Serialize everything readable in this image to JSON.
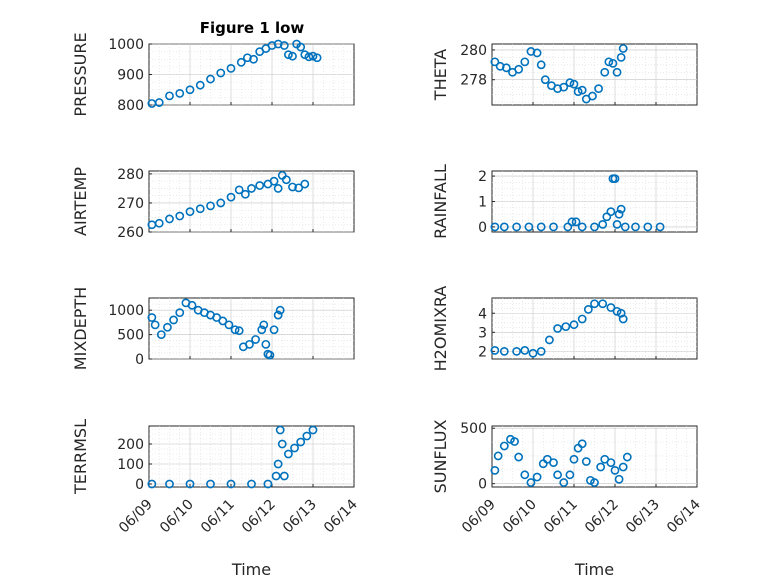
{
  "figure": {
    "title": "Figure 1 low",
    "marker_color": "#0072BD"
  },
  "x_ticks": [
    "06/09",
    "06/10",
    "06/11",
    "06/12",
    "06/13",
    "06/14"
  ],
  "chart_data": [
    {
      "type": "scatter",
      "name": "PRESSURE",
      "ylabel": "PRESSURE",
      "title": "Figure 1 low",
      "xlabel": "",
      "ylim": [
        800,
        1000
      ],
      "yticks": [
        "800",
        "900",
        "1000"
      ],
      "ytick_values": [
        800,
        900,
        1000
      ],
      "xlim": [
        0,
        5
      ],
      "grid": true,
      "points": [
        [
          0.07,
          805
        ],
        [
          0.25,
          808
        ],
        [
          0.5,
          830
        ],
        [
          0.75,
          838
        ],
        [
          1.0,
          850
        ],
        [
          1.25,
          865
        ],
        [
          1.5,
          885
        ],
        [
          1.75,
          905
        ],
        [
          2.0,
          920
        ],
        [
          2.25,
          940
        ],
        [
          2.4,
          955
        ],
        [
          2.55,
          950
        ],
        [
          2.7,
          975
        ],
        [
          2.85,
          985
        ],
        [
          3.0,
          995
        ],
        [
          3.15,
          1000
        ],
        [
          3.3,
          995
        ],
        [
          3.4,
          965
        ],
        [
          3.5,
          960
        ],
        [
          3.6,
          1000
        ],
        [
          3.7,
          990
        ],
        [
          3.8,
          965
        ],
        [
          3.9,
          958
        ],
        [
          4.0,
          960
        ],
        [
          4.1,
          955
        ]
      ]
    },
    {
      "type": "scatter",
      "name": "THETA",
      "ylabel": "THETA",
      "xlabel": "",
      "ylim": [
        276.3,
        280.4
      ],
      "yticks": [
        "278",
        "280"
      ],
      "ytick_values": [
        278,
        280
      ],
      "xlim": [
        0,
        5
      ],
      "grid": true,
      "points": [
        [
          0.07,
          279.2
        ],
        [
          0.2,
          278.9
        ],
        [
          0.35,
          278.8
        ],
        [
          0.5,
          278.5
        ],
        [
          0.65,
          278.7
        ],
        [
          0.8,
          279.2
        ],
        [
          0.95,
          279.9
        ],
        [
          1.1,
          279.8
        ],
        [
          1.2,
          279.0
        ],
        [
          1.3,
          278.0
        ],
        [
          1.45,
          277.6
        ],
        [
          1.6,
          277.4
        ],
        [
          1.75,
          277.5
        ],
        [
          1.9,
          277.8
        ],
        [
          2.0,
          277.7
        ],
        [
          2.1,
          277.2
        ],
        [
          2.2,
          277.3
        ],
        [
          2.3,
          276.7
        ],
        [
          2.45,
          276.9
        ],
        [
          2.6,
          277.4
        ],
        [
          2.75,
          278.5
        ],
        [
          2.85,
          279.2
        ],
        [
          2.95,
          279.1
        ],
        [
          3.05,
          278.5
        ],
        [
          3.15,
          279.5
        ],
        [
          3.2,
          280.1
        ]
      ]
    },
    {
      "type": "scatter",
      "name": "AIR_TEMP",
      "ylabel": "AIR_TEMP",
      "xlabel": "",
      "ylim": [
        260,
        281
      ],
      "yticks": [
        "260",
        "270",
        "280"
      ],
      "ytick_values": [
        260,
        270,
        280
      ],
      "xlim": [
        0,
        5
      ],
      "grid": true,
      "points": [
        [
          0.07,
          262.5
        ],
        [
          0.25,
          263
        ],
        [
          0.5,
          264.5
        ],
        [
          0.75,
          265.5
        ],
        [
          1.0,
          267
        ],
        [
          1.25,
          268
        ],
        [
          1.5,
          269
        ],
        [
          1.75,
          270
        ],
        [
          2.0,
          272
        ],
        [
          2.2,
          274.5
        ],
        [
          2.35,
          273
        ],
        [
          2.5,
          275
        ],
        [
          2.7,
          276
        ],
        [
          2.9,
          276.5
        ],
        [
          3.05,
          277.5
        ],
        [
          3.15,
          275
        ],
        [
          3.25,
          279.5
        ],
        [
          3.35,
          278
        ],
        [
          3.5,
          275.5
        ],
        [
          3.65,
          275.2
        ],
        [
          3.8,
          276.5
        ]
      ]
    },
    {
      "type": "scatter",
      "name": "RAINFALL",
      "ylabel": "RAINFALL",
      "xlabel": "",
      "ylim": [
        -0.2,
        2.2
      ],
      "yticks": [
        "0",
        "1",
        "2"
      ],
      "ytick_values": [
        0,
        1,
        2
      ],
      "xlim": [
        0,
        5
      ],
      "grid": true,
      "points": [
        [
          0.07,
          0
        ],
        [
          0.3,
          0
        ],
        [
          0.6,
          0
        ],
        [
          0.9,
          0
        ],
        [
          1.2,
          0
        ],
        [
          1.5,
          0
        ],
        [
          1.85,
          0
        ],
        [
          1.95,
          0.2
        ],
        [
          2.05,
          0.2
        ],
        [
          2.2,
          0
        ],
        [
          2.5,
          0
        ],
        [
          2.7,
          0.1
        ],
        [
          2.8,
          0.4
        ],
        [
          2.9,
          0.6
        ],
        [
          2.95,
          1.9
        ],
        [
          3.0,
          1.9
        ],
        [
          3.05,
          0.1
        ],
        [
          3.1,
          0.5
        ],
        [
          3.15,
          0.7
        ],
        [
          3.25,
          0
        ],
        [
          3.5,
          0
        ],
        [
          3.8,
          0
        ],
        [
          4.1,
          0
        ]
      ]
    },
    {
      "type": "scatter",
      "name": "MIXDEPTH",
      "ylabel": "MIXDEPTH",
      "xlabel": "",
      "ylim": [
        0,
        1250
      ],
      "yticks": [
        "0",
        "500",
        "1000"
      ],
      "ytick_values": [
        0,
        500,
        1000
      ],
      "xlim": [
        0,
        5
      ],
      "grid": true,
      "points": [
        [
          0.07,
          850
        ],
        [
          0.15,
          700
        ],
        [
          0.3,
          500
        ],
        [
          0.45,
          650
        ],
        [
          0.6,
          800
        ],
        [
          0.75,
          950
        ],
        [
          0.9,
          1150
        ],
        [
          1.05,
          1100
        ],
        [
          1.2,
          1000
        ],
        [
          1.35,
          950
        ],
        [
          1.5,
          900
        ],
        [
          1.65,
          850
        ],
        [
          1.8,
          780
        ],
        [
          1.95,
          700
        ],
        [
          2.1,
          600
        ],
        [
          2.2,
          580
        ],
        [
          2.3,
          250
        ],
        [
          2.45,
          300
        ],
        [
          2.6,
          400
        ],
        [
          2.75,
          600
        ],
        [
          2.8,
          700
        ],
        [
          2.85,
          300
        ],
        [
          2.9,
          100
        ],
        [
          2.95,
          80
        ],
        [
          3.05,
          600
        ],
        [
          3.15,
          900
        ],
        [
          3.2,
          1000
        ]
      ]
    },
    {
      "type": "scatter",
      "name": "H2OMIXRA",
      "ylabel": "H2OMIXRA",
      "xlabel": "",
      "ylim": [
        1.6,
        4.8
      ],
      "yticks": [
        "2",
        "3",
        "4"
      ],
      "ytick_values": [
        2,
        3,
        4
      ],
      "xlim": [
        0,
        5
      ],
      "grid": true,
      "points": [
        [
          0.07,
          2.05
        ],
        [
          0.3,
          2.0
        ],
        [
          0.6,
          2.0
        ],
        [
          0.8,
          2.05
        ],
        [
          1.0,
          1.9
        ],
        [
          1.2,
          2.0
        ],
        [
          1.4,
          2.6
        ],
        [
          1.6,
          3.2
        ],
        [
          1.8,
          3.3
        ],
        [
          2.0,
          3.4
        ],
        [
          2.2,
          3.7
        ],
        [
          2.35,
          4.2
        ],
        [
          2.5,
          4.5
        ],
        [
          2.7,
          4.5
        ],
        [
          2.9,
          4.3
        ],
        [
          3.05,
          4.1
        ],
        [
          3.15,
          4.0
        ],
        [
          3.2,
          3.7
        ]
      ]
    },
    {
      "type": "scatter",
      "name": "TERR_MSL",
      "ylabel": "TERR_MSL",
      "xlabel": "Time",
      "ylim": [
        -15,
        290
      ],
      "yticks": [
        "0",
        "100",
        "200"
      ],
      "ytick_values": [
        0,
        100,
        200
      ],
      "xlim": [
        0,
        5
      ],
      "grid": true,
      "points": [
        [
          0.07,
          0
        ],
        [
          0.5,
          0
        ],
        [
          1.0,
          0
        ],
        [
          1.5,
          0
        ],
        [
          2.0,
          0
        ],
        [
          2.5,
          0
        ],
        [
          2.9,
          0
        ],
        [
          3.1,
          40
        ],
        [
          3.15,
          100
        ],
        [
          3.2,
          270
        ],
        [
          3.25,
          200
        ],
        [
          3.3,
          40
        ],
        [
          3.4,
          150
        ],
        [
          3.55,
          180
        ],
        [
          3.7,
          210
        ],
        [
          3.85,
          240
        ],
        [
          4.0,
          270
        ]
      ]
    },
    {
      "type": "scatter",
      "name": "SUN_FLUX",
      "ylabel": "SUN_FLUX",
      "xlabel": "Time",
      "ylim": [
        -30,
        520
      ],
      "yticks": [
        "0",
        "500"
      ],
      "ytick_values": [
        0,
        500
      ],
      "xlim": [
        0,
        5
      ],
      "grid": true,
      "points": [
        [
          0.07,
          120
        ],
        [
          0.15,
          250
        ],
        [
          0.3,
          340
        ],
        [
          0.45,
          400
        ],
        [
          0.55,
          380
        ],
        [
          0.65,
          240
        ],
        [
          0.8,
          80
        ],
        [
          0.95,
          10
        ],
        [
          1.1,
          60
        ],
        [
          1.25,
          180
        ],
        [
          1.35,
          220
        ],
        [
          1.5,
          190
        ],
        [
          1.6,
          80
        ],
        [
          1.75,
          10
        ],
        [
          1.9,
          80
        ],
        [
          2.0,
          220
        ],
        [
          2.1,
          320
        ],
        [
          2.2,
          360
        ],
        [
          2.3,
          200
        ],
        [
          2.4,
          30
        ],
        [
          2.5,
          10
        ],
        [
          2.65,
          150
        ],
        [
          2.75,
          220
        ],
        [
          2.9,
          190
        ],
        [
          3.0,
          120
        ],
        [
          3.1,
          40
        ],
        [
          3.2,
          150
        ],
        [
          3.3,
          240
        ]
      ]
    }
  ]
}
